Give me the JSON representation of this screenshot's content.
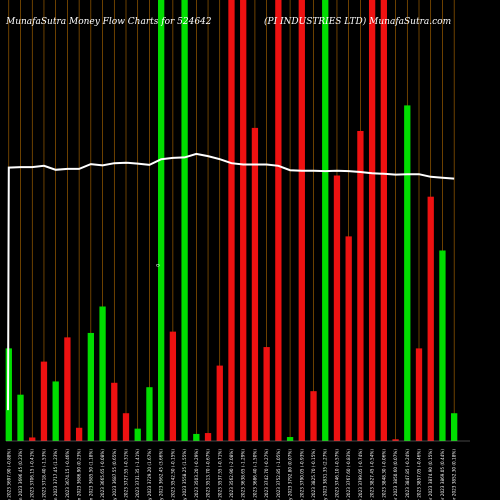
{
  "chart_data": {
    "type": "bar",
    "title_left": "MunafaSutra  Money Flow  Charts for 524642",
    "title_right": "(PI INDUSTRIES LTD) MunafaSutra.com",
    "colors": {
      "background": "#000000",
      "up": "#00dd00",
      "down": "#ee1111",
      "price_line": "#ffffff",
      "grid": "#b36b00"
    },
    "ylim": [
      0,
      100
    ],
    "bars": [
      {
        "x": 1,
        "color": "up",
        "value": 21
      },
      {
        "x": 2,
        "color": "up",
        "value": 10.5
      },
      {
        "x": 3,
        "color": "down",
        "value": 0.8
      },
      {
        "x": 4,
        "color": "down",
        "value": 18
      },
      {
        "x": 5,
        "color": "up",
        "value": 13.5
      },
      {
        "x": 6,
        "color": "down",
        "value": 23.5
      },
      {
        "x": 7,
        "color": "down",
        "value": 3
      },
      {
        "x": 8,
        "color": "up",
        "value": 24.5
      },
      {
        "x": 9,
        "color": "up",
        "value": 30.5
      },
      {
        "x": 10,
        "color": "down",
        "value": 13.2
      },
      {
        "x": 11,
        "color": "down",
        "value": 6.3
      },
      {
        "x": 12,
        "color": "up",
        "value": 2.8
      },
      {
        "x": 13,
        "color": "up",
        "value": 12.2
      },
      {
        "x": 14,
        "color": "up",
        "value": 100
      },
      {
        "x": 15,
        "color": "down",
        "value": 24.8
      },
      {
        "x": 16,
        "color": "up",
        "value": 100
      },
      {
        "x": 17,
        "color": "up",
        "value": 1.6
      },
      {
        "x": 18,
        "color": "down",
        "value": 1.8
      },
      {
        "x": 19,
        "color": "down",
        "value": 17.1
      },
      {
        "x": 20,
        "color": "down",
        "value": 100
      },
      {
        "x": 21,
        "color": "down",
        "value": 100
      },
      {
        "x": 22,
        "color": "down",
        "value": 71
      },
      {
        "x": 23,
        "color": "down",
        "value": 21.3
      },
      {
        "x": 24,
        "color": "down",
        "value": 100
      },
      {
        "x": 25,
        "color": "up",
        "value": 0.9
      },
      {
        "x": 26,
        "color": "down",
        "value": 100
      },
      {
        "x": 27,
        "color": "down",
        "value": 11.3
      },
      {
        "x": 28,
        "color": "up",
        "value": 100
      },
      {
        "x": 29,
        "color": "down",
        "value": 60.2
      },
      {
        "x": 30,
        "color": "down",
        "value": 46.4
      },
      {
        "x": 31,
        "color": "down",
        "value": 70.3
      },
      {
        "x": 32,
        "color": "down",
        "value": 100
      },
      {
        "x": 33,
        "color": "down",
        "value": 100
      },
      {
        "x": 34,
        "color": "down",
        "value": 0.4
      },
      {
        "x": 35,
        "color": "up",
        "value": 76.1
      },
      {
        "x": 36,
        "color": "down",
        "value": 21
      },
      {
        "x": 37,
        "color": "down",
        "value": 55.4
      },
      {
        "x": 38,
        "color": "up",
        "value": 43.2
      },
      {
        "x": 39,
        "color": "up",
        "value": 6.3
      }
    ],
    "price": [
      62,
      62.1,
      62.1,
      62.4,
      61.5,
      61.7,
      61.7,
      62.8,
      62.5,
      63,
      63.1,
      62.9,
      62.6,
      63.9,
      64.2,
      64.3,
      65.1,
      64.6,
      63.9,
      63,
      62.7,
      62.7,
      62.7,
      62.4,
      61.4,
      61.3,
      61.3,
      61.2,
      61.3,
      61.2,
      61,
      60.7,
      60.6,
      60.4,
      60.5,
      60.5,
      59.9,
      59.7,
      59.5
    ],
    "price_start": 7,
    "xtick_labels": [
      "Tue 13 Jun 2023 3697.90 (-0.88%)",
      "Mon 12 Jun 2023 3696.45 (0.23%)",
      "Fri 09 Jun 2023 3706.15 (-0.41%)",
      "Thu 08 Jun 2023 3718.40 (-1.53%)",
      "Wed 07 Jun 2023 3717.45 (1.23%)",
      "Tue 06 Jun 2023 3674.15 (-0.46%)",
      "Mon 05 Jun 2023 3686.90 (0.23%)",
      "Fri 02 Jun 2023 3685.50 (1.18%)",
      "Thu 01 Jun 2023 3665.65 (-0.08%)",
      "Wed 31 May 2023 3687.55 (0.65%)",
      "Tue 30 May 2023 3727.55 (-0.31%)",
      "Mon 29 May 2023 3731.35 (-1.41%)",
      "Fri 26 May 2023 3729.20 (1.67%)",
      "Thu 25 May 2023 3662.45 (3.66%)",
      "Wed 24 May 2023 3542.50 (-0.15%)",
      "Tue 23 May 2023 3558.25 (1.55%)",
      "Mon 22 May 2023 3503.20 (-0.29%)",
      "Fri 19 May 2023 3513.70 (-0.67%)",
      "Thu 18 May 2023 3537.55 (-0.71%)",
      "Wed 17 May 2023 3562.90 (-2.08%)",
      "Tue 16 May 2023 3638.65 (-1.29%)",
      "Mon 15 May 2023 3686.40 (-1.50%)",
      "Fri 12 May 2023 3742.70 (-0.27%)",
      "Thu 11 May 2023 3752.85 (-1.05%)",
      "Wed 10 May 2023 3792.80 (0.07%)",
      "Tue 09 May 2023 3790.05 (-0.93%)",
      "Mon 08 May 2023 3825.70 (-0.15%)",
      "Fri 05 May 2023 3831.35 (2.27%)",
      "Thu 04 May 2023 3746.10 (-0.57%)",
      "Wed 03 May 2023 3767.60 (-0.83%)",
      "Tue 02 May 2023 3799.05 (-0.74%)",
      "Fri 28 Apr 2023 3827.45 (-0.54%)",
      "Thu 27 Apr 2023 3848.30 (-0.06%)",
      "Wed 26 Apr 2023 3850.60 (0.07%)",
      "Tue 25 Apr 2023 3847.85 (-0.24%)",
      "Mon 24 Apr 2023 3857.05 (-0.46%)",
      "Fri 21 Apr 2023 3874.90 (0.15%)",
      "Thu 20 Apr 2023 3869.05 (0.44%)",
      "Wed 19 Apr 2023 3852.30 (0.18%)"
    ],
    "zero_label": "0"
  }
}
